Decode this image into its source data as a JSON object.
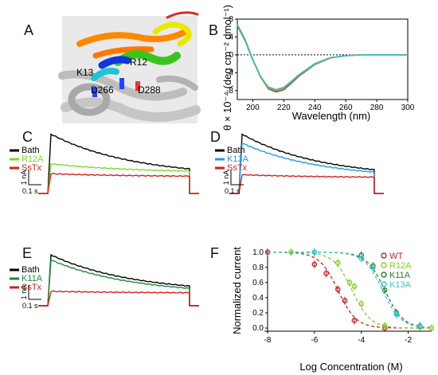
{
  "panels": {
    "A": {
      "letter": "A",
      "labels": [
        "K13",
        "R12",
        "D266",
        "D288"
      ]
    },
    "B": {
      "letter": "B"
    },
    "C": {
      "letter": "C",
      "legend": [
        "Bath",
        "R12A",
        "SsTx"
      ],
      "scale_current": "1 nA",
      "scale_time": "0.1 s"
    },
    "D": {
      "letter": "D",
      "legend": [
        "Bath",
        "K13A",
        "SsTx"
      ],
      "scale_current": "1 nA",
      "scale_time": "0.1 s"
    },
    "E": {
      "letter": "E",
      "legend": [
        "Bath",
        "K11A",
        "SsTx"
      ],
      "scale_current": "1 nA",
      "scale_time": "0.1 s"
    },
    "F": {
      "letter": "F",
      "legend": [
        "WT",
        "R12A",
        "K11A",
        "K13A"
      ]
    }
  },
  "colors": {
    "bath": "#000000",
    "r12a": "#7CDB2C",
    "k13a": "#1E9BE8",
    "k11a": "#1A8A3C",
    "sstx": "#D81E1E",
    "wt": "#C0282A",
    "r12a_dose": "#8BCB2B",
    "k11a_dose": "#2E7D32",
    "k13a_dose": "#3BC6C6"
  },
  "chart_data": [
    {
      "panel": "B",
      "type": "line",
      "xlabel": "Wavelength (nm)",
      "ylabel": "θ × 10⁻⁴ (deg cm⁻² dmol⁻¹)",
      "xlim": [
        190,
        300
      ],
      "ylim": [
        -10,
        8
      ],
      "xticks": [
        200,
        220,
        240,
        260,
        280,
        300
      ],
      "yticks": [
        -8,
        -4,
        0,
        4,
        8
      ],
      "reference_line": 0,
      "series": [
        {
          "color": "#C0282A",
          "x": [
            190,
            195,
            200,
            205,
            210,
            215,
            220,
            225,
            230,
            240,
            250,
            260,
            270,
            280,
            290,
            300
          ],
          "y": [
            6.8,
            3.5,
            -1.0,
            -5.0,
            -7.6,
            -8.3,
            -7.8,
            -6.3,
            -4.7,
            -2.2,
            -0.7,
            -0.2,
            0,
            0,
            0,
            0
          ]
        },
        {
          "color": "#8BCB2B",
          "x": [
            190,
            195,
            200,
            205,
            210,
            215,
            220,
            225,
            230,
            240,
            250,
            260,
            270,
            280,
            290,
            300
          ],
          "y": [
            6.6,
            3.3,
            -1.1,
            -5.0,
            -7.4,
            -8.0,
            -7.5,
            -6.0,
            -4.5,
            -2.1,
            -0.6,
            -0.2,
            0,
            0,
            0,
            0
          ]
        },
        {
          "color": "#2E7D32",
          "x": [
            190,
            195,
            200,
            205,
            210,
            215,
            220,
            225,
            230,
            240,
            250,
            260,
            270,
            280,
            290,
            300
          ],
          "y": [
            6.5,
            3.2,
            -1.2,
            -4.9,
            -7.2,
            -7.8,
            -7.3,
            -5.9,
            -4.4,
            -2.0,
            -0.6,
            -0.2,
            0,
            0,
            0,
            0
          ]
        },
        {
          "color": "#3BC6C6",
          "x": [
            190,
            195,
            200,
            205,
            210,
            215,
            220,
            225,
            230,
            240,
            250,
            260,
            270,
            280,
            290,
            300
          ],
          "y": [
            6.7,
            3.4,
            -1.0,
            -4.8,
            -7.3,
            -7.9,
            -7.4,
            -6.0,
            -4.5,
            -2.1,
            -0.6,
            -0.2,
            0,
            0,
            0,
            0
          ]
        }
      ]
    },
    {
      "panel": "C",
      "type": "line",
      "series": [
        {
          "name": "Bath",
          "peak": 3.0,
          "end": 0.85
        },
        {
          "name": "R12A",
          "peak": 1.5,
          "end": 1.05
        },
        {
          "name": "SsTx",
          "peak": 1.0,
          "end": 0.85
        }
      ]
    },
    {
      "panel": "D",
      "type": "line",
      "series": [
        {
          "name": "Bath",
          "peak": 3.0,
          "end": 0.8
        },
        {
          "name": "K13A",
          "peak": 2.55,
          "end": 0.75
        },
        {
          "name": "SsTx",
          "peak": 0.95,
          "end": 0.8
        }
      ]
    },
    {
      "panel": "E",
      "type": "line",
      "series": [
        {
          "name": "Bath",
          "peak": 3.0,
          "end": 0.75
        },
        {
          "name": "K11A",
          "peak": 2.7,
          "end": 0.65
        },
        {
          "name": "SsTx",
          "peak": 0.85,
          "end": 0.75
        }
      ]
    },
    {
      "panel": "F",
      "type": "scatter",
      "xlabel": "Log Concentration (M)",
      "ylabel": "Normalized current",
      "xlim": [
        -8,
        -1
      ],
      "ylim": [
        0,
        1.05
      ],
      "xticks": [
        -8,
        -6,
        -4,
        -2
      ],
      "yticks": [
        0.0,
        0.2,
        0.4,
        0.6,
        0.8,
        1.0
      ],
      "legend_position": "top-right",
      "series": [
        {
          "name": "WT",
          "color": "#C0282A",
          "x": [
            -8,
            -6,
            -5.5,
            -5,
            -4.7,
            -4.3,
            -3
          ],
          "y": [
            1.0,
            0.84,
            0.72,
            0.51,
            0.36,
            0.1,
            0.0
          ],
          "ic50": -5.0
        },
        {
          "name": "R12A",
          "color": "#8BCB2B",
          "x": [
            -7,
            -5,
            -4.5,
            -4.3,
            -4,
            -3,
            -1
          ],
          "y": [
            1.0,
            0.86,
            0.6,
            0.55,
            0.32,
            0.03,
            0.0
          ],
          "ic50": -4.4
        },
        {
          "name": "K11A",
          "color": "#2E7D32",
          "x": [
            -6,
            -4,
            -3.5,
            -3,
            -2.5,
            -1.5
          ],
          "y": [
            1.0,
            0.96,
            0.82,
            0.5,
            0.2,
            0.02
          ],
          "ic50": -3.0
        },
        {
          "name": "K13A",
          "color": "#3BC6C6",
          "x": [
            -6,
            -4,
            -3.5,
            -2.5,
            -1.5
          ],
          "y": [
            1.0,
            0.92,
            0.8,
            0.18,
            0.03
          ],
          "ic50": -3.1
        }
      ]
    }
  ]
}
